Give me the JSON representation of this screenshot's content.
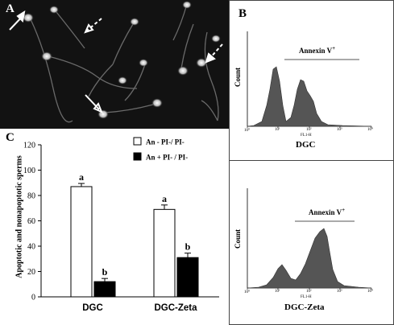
{
  "panels": {
    "a": {
      "label": "A"
    },
    "b": {
      "label": "B"
    },
    "c": {
      "label": "C"
    }
  },
  "flow_top": {
    "ylabel": "Count",
    "annotation": "Annexin V",
    "annotation_sup": "+",
    "xlabel": "DGC",
    "axis_label": "FL1-H",
    "xticks": [
      "10⁰",
      "10¹",
      "10²",
      "10³",
      "10⁴"
    ]
  },
  "flow_bottom": {
    "ylabel": "Count",
    "annotation": "Annexin V",
    "annotation_sup": "+",
    "xlabel": "DGC-Zeta",
    "axis_label": "FL1-H",
    "xticks": [
      "10⁰",
      "10¹",
      "10²",
      "10³",
      "10⁴"
    ]
  },
  "colors": {
    "fill_dark": "#000000",
    "fill_light": "#ffffff",
    "flow_fill": "#555555"
  },
  "chart_data": {
    "type": "bar",
    "ylabel": "Apoptotic and nonapoptotic sperms",
    "ylim": [
      0,
      120
    ],
    "yticks": [
      0,
      20,
      40,
      60,
      80,
      100,
      120
    ],
    "categories": [
      "DGC",
      "DGC-Zeta"
    ],
    "series": [
      {
        "name": "An - PI-/ PI-",
        "values": [
          87,
          69
        ],
        "errors": [
          2.5,
          3.5
        ],
        "labels": [
          "a",
          "a"
        ],
        "color": "#ffffff"
      },
      {
        "name": "An + PI- / PI-",
        "values": [
          12,
          31
        ],
        "errors": [
          2.5,
          3.5
        ],
        "labels": [
          "b",
          "b"
        ],
        "color": "#000000"
      }
    ],
    "legend": "top-right"
  }
}
